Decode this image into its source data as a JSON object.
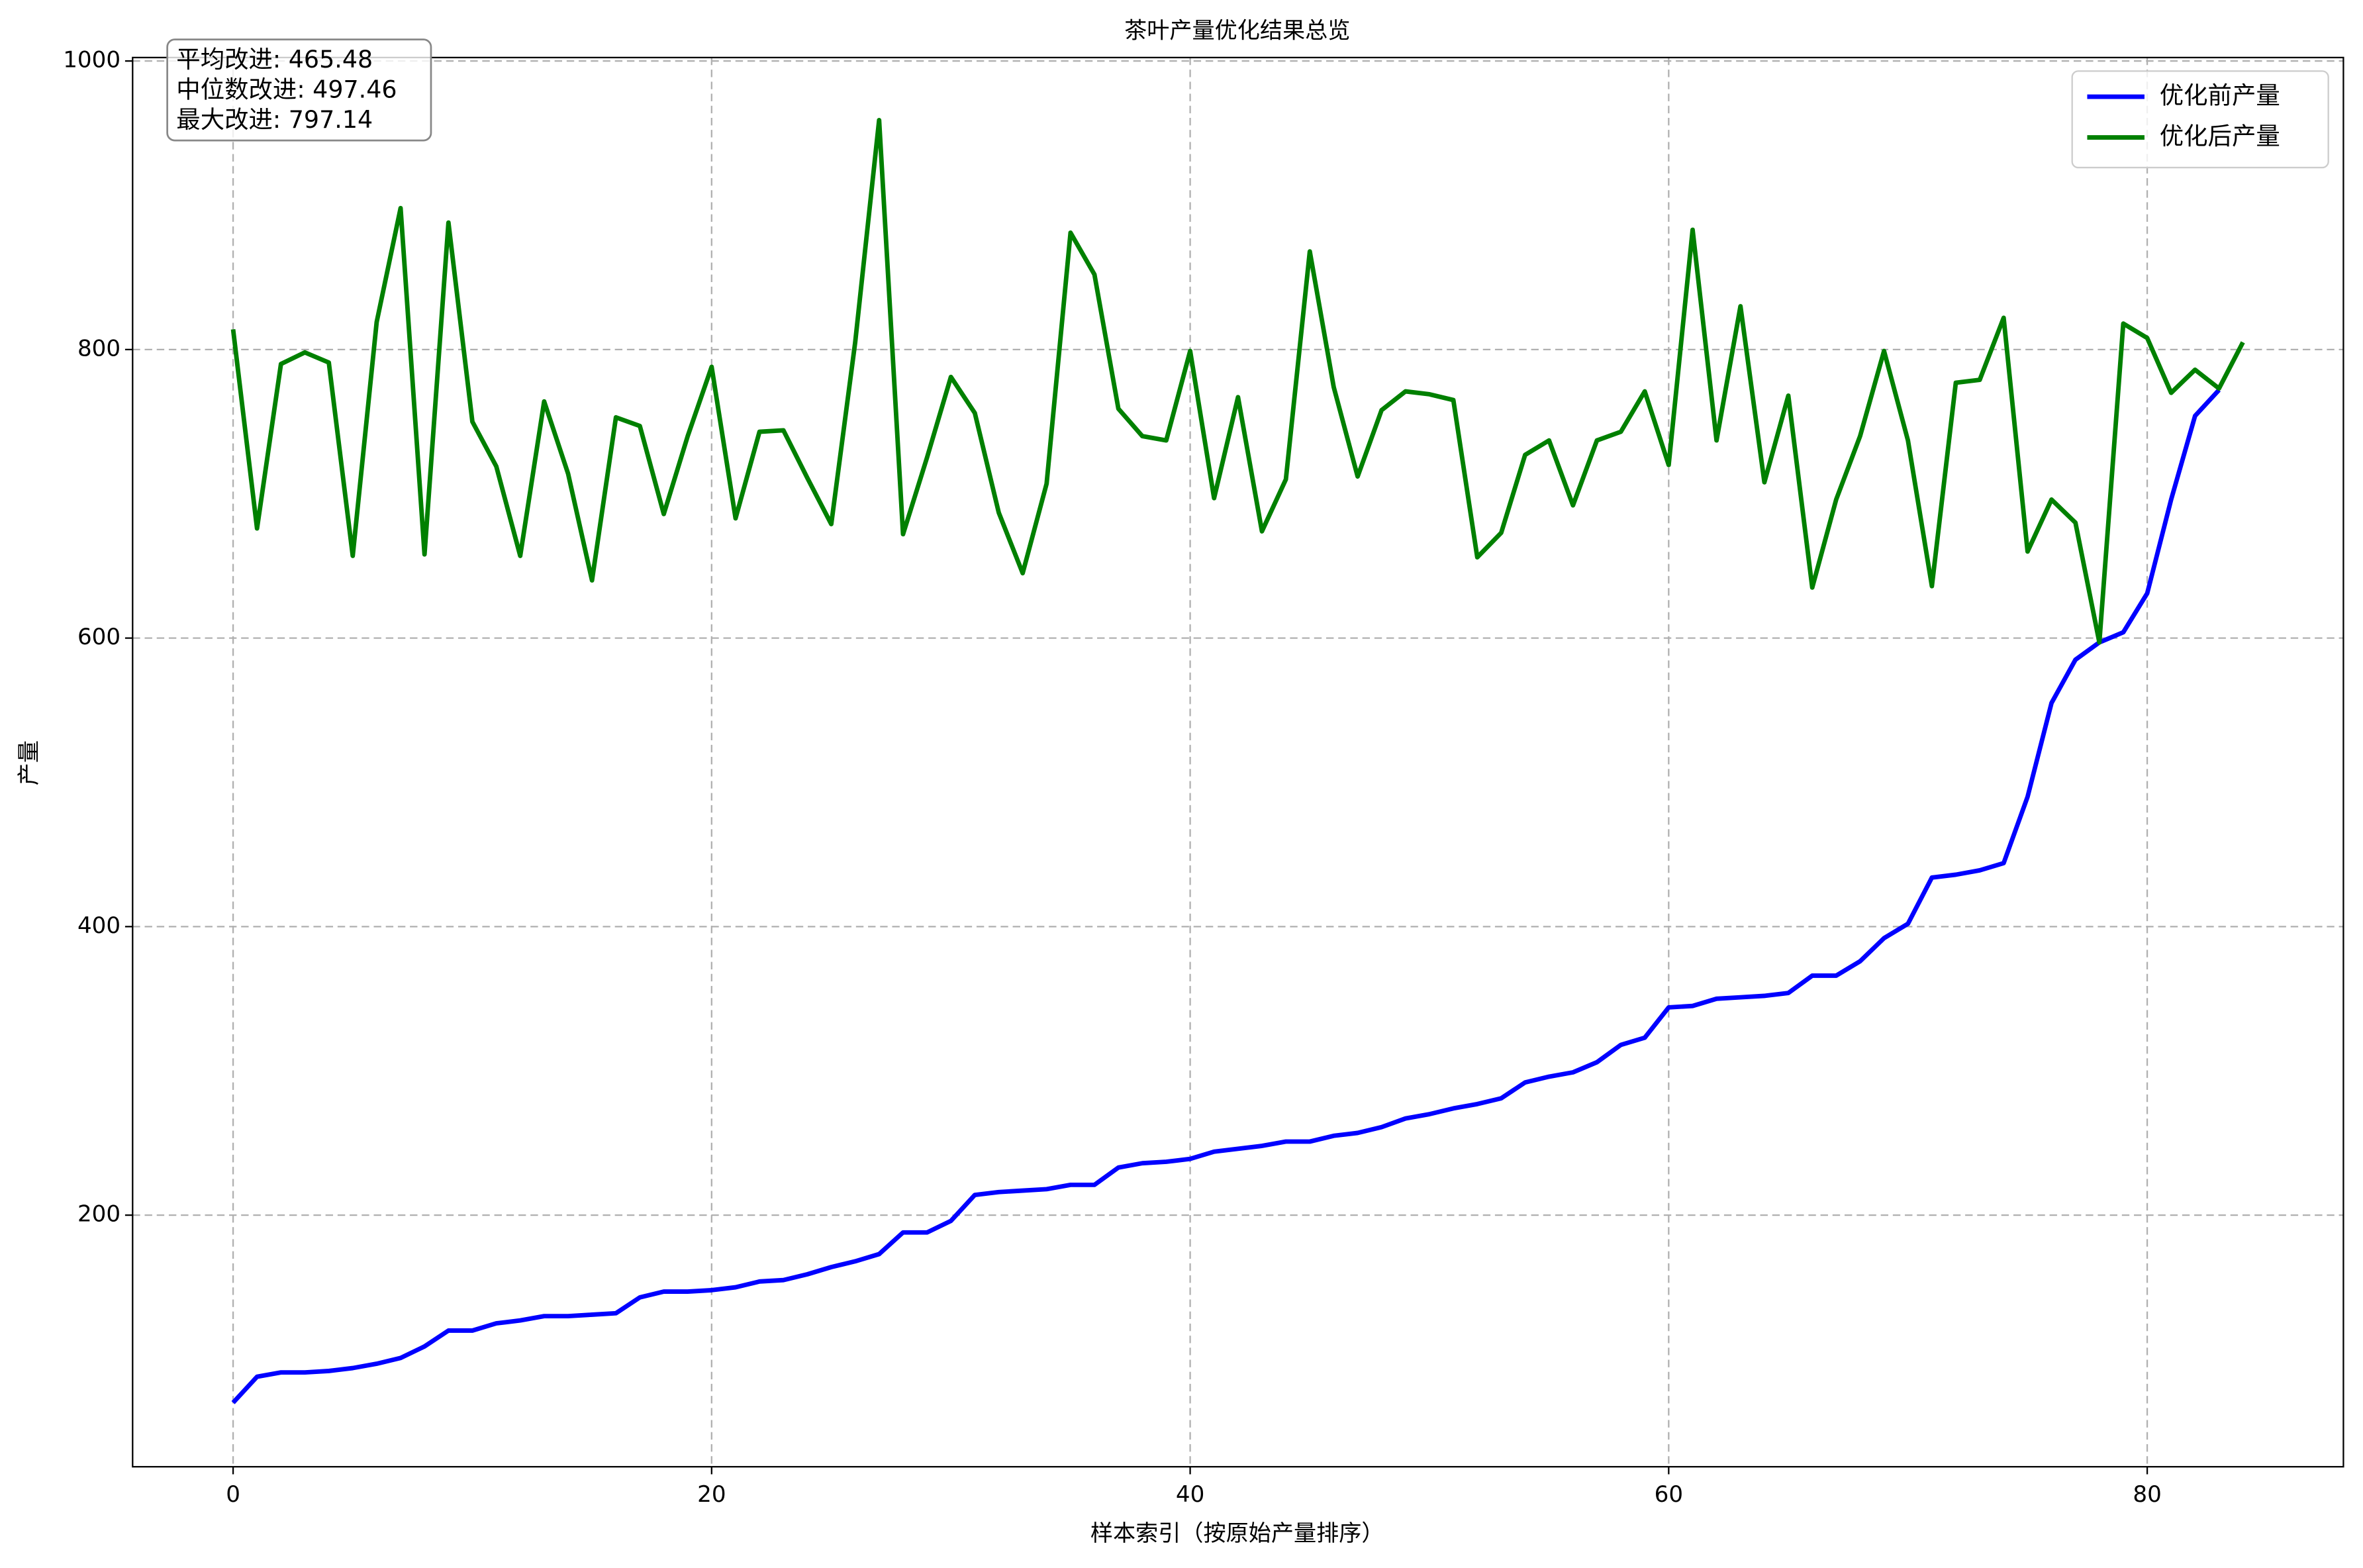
{
  "chart_data": {
    "type": "line",
    "title": "茶叶产量优化结果总览",
    "xlabel": "样本索引（按原始产量排序）",
    "ylabel": "产量",
    "annotation": [
      "平均改进: 465.48",
      "中位数改进: 497.46",
      "最大改进: 797.14"
    ],
    "x": [
      0,
      1,
      2,
      3,
      4,
      5,
      6,
      7,
      8,
      9,
      10,
      11,
      12,
      13,
      14,
      15,
      16,
      17,
      18,
      19,
      20,
      21,
      22,
      23,
      24,
      25,
      26,
      27,
      28,
      29,
      30,
      31,
      32,
      33,
      34,
      35,
      36,
      37,
      38,
      39,
      40,
      41,
      42,
      43,
      44,
      45,
      46,
      47,
      48,
      49,
      50,
      51,
      52,
      53,
      54,
      55,
      56,
      57,
      58,
      59,
      60,
      61,
      62,
      63,
      64,
      65,
      66,
      67,
      68,
      69,
      70,
      71,
      72,
      73,
      74,
      75,
      76,
      77,
      78,
      79,
      80,
      81,
      82,
      83,
      84
    ],
    "series": [
      {
        "name": "优化前产量",
        "color": "#0000ff",
        "values": [
          70,
          88,
          91,
          91,
          92,
          94,
          97,
          101,
          109,
          120,
          120,
          125,
          127,
          130,
          130,
          131,
          132,
          143,
          147,
          147,
          148,
          150,
          154,
          155,
          159,
          164,
          168,
          173,
          188,
          188,
          196,
          214,
          216,
          217,
          218,
          221,
          221,
          233,
          236,
          237,
          239,
          244,
          246,
          248,
          251,
          251,
          255,
          257,
          261,
          267,
          270,
          274,
          277,
          281,
          292,
          296,
          299,
          306,
          318,
          323,
          344,
          345,
          350,
          351,
          352,
          354,
          366,
          366,
          376,
          392,
          402,
          434,
          436,
          439,
          444,
          490,
          555,
          585,
          597,
          604,
          631,
          696,
          754,
          772,
          null
        ]
      },
      {
        "name": "优化后产量",
        "color": "#008000",
        "values": [
          814,
          676,
          790,
          798,
          791,
          657,
          819,
          898,
          658,
          888,
          750,
          719,
          657,
          764,
          714,
          640,
          753,
          747,
          686,
          740,
          788,
          683,
          743,
          744,
          711,
          679,
          805,
          959,
          672,
          725,
          781,
          756,
          687,
          645,
          707,
          881,
          852,
          759,
          740,
          737,
          799,
          697,
          767,
          674,
          710,
          868,
          774,
          712,
          758,
          771,
          769,
          765,
          656,
          673,
          727,
          737,
          692,
          737,
          743,
          771,
          720,
          883,
          737,
          830,
          708,
          768,
          635,
          696,
          740,
          799,
          737,
          636,
          777,
          779,
          822,
          660,
          696,
          680,
          597,
          818,
          808,
          770,
          786,
          773,
          805
        ]
      }
    ],
    "xlim": [
      -4.2,
      88.2
    ],
    "ylim": [
      25.6,
      1002.4
    ],
    "xticks": [
      0,
      20,
      40,
      60,
      80
    ],
    "yticks": [
      200,
      400,
      600,
      800,
      1000
    ],
    "grid": true,
    "legend": "upper right"
  }
}
